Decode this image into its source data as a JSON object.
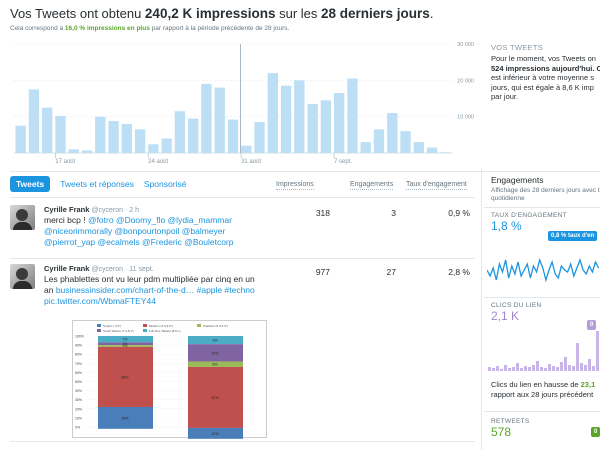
{
  "header": {
    "headline_pre": "Vos Tweets ont obtenu ",
    "headline_value": "240,2 K impressions",
    "headline_mid": " sur les ",
    "headline_period": "28 derniers jours",
    "headline_end": ".",
    "sub_pre": "Cela correspond à ",
    "sub_highlight": "16,0 % impressions en plus",
    "sub_post": " par rapport à la période précédente de 28 jours."
  },
  "chart_data": {
    "type": "bar",
    "categories": [
      "",
      "",
      "",
      "17 août",
      "",
      "",
      "",
      "",
      "",
      "",
      "24 août",
      "",
      "",
      "",
      "",
      "",
      "",
      "31 août",
      "",
      "",
      "",
      "",
      "",
      "",
      "7 sept.",
      "",
      "",
      "",
      "",
      "",
      "",
      "",
      ""
    ],
    "values": [
      7500,
      17500,
      12500,
      10200,
      1000,
      700,
      10000,
      8800,
      8000,
      6500,
      2400,
      4000,
      11500,
      9500,
      19000,
      18000,
      9200,
      2000,
      8500,
      22000,
      18500,
      20000,
      13500,
      14500,
      16500,
      20500,
      3000,
      6500,
      11000,
      6000,
      3000,
      1500,
      200
    ],
    "ylim": [
      0,
      30000
    ],
    "yticks": [
      10000,
      20000,
      30000
    ],
    "ytick_labels": [
      "10 000",
      "20 000",
      "30 000"
    ],
    "grid": true
  },
  "summary": {
    "title": "VOS TWEETS",
    "lines": [
      "Pour le moment, vos Tweets on",
      "524 impressions aujourd'hui. C",
      "est inférieur à votre moyenne s",
      "jours, qui est égale à 8,6 K imp",
      "par jour."
    ]
  },
  "tabs": [
    "Tweets",
    "Tweets et réponses",
    "Sponsorisé"
  ],
  "columns": [
    "Impressions",
    "Engagements",
    "Taux d'engagement"
  ],
  "tweets": [
    {
      "name": "Cyrille Frank",
      "handle": "@cyceron · 2 h",
      "line1_text": "merci bcp ! ",
      "line1_links": "@fotro @Doomy_flo @lydia_mammar",
      "line2": "@niceorimmorally @bonpourtonpoil @balmeyer",
      "line3": "@pierrot_yap @ecalmels @Frederic @Bouletcorp",
      "impressions": "318",
      "engagements": "3",
      "rate": "0,9 %"
    },
    {
      "name": "Cyrille Frank",
      "handle": "@cyceron · 11 sept.",
      "line1_text": "Les phablettes ont vu leur pdm multipliée par cinq en un",
      "line2_pre": "an ",
      "line2_link": "businessinsider.com/chart-of-the-d…",
      "line2_tags": " #apple #techno",
      "line3": "pic.twitter.com/WbmaFTEY44",
      "impressions": "977",
      "engagements": "27",
      "rate": "2,8 %"
    }
  ],
  "embed": {
    "legend": [
      "Small (< 3.5\")",
      "Medium (3.5-4.9\")",
      "Phablets (5.0-6.9\")",
      "Small Tablets (7.0-8.4\")",
      "Full Size Tablets (8.5\"+)"
    ],
    "yticks": [
      "100%",
      "90%",
      "80%",
      "70%",
      "60%",
      "50%",
      "40%",
      "30%",
      "20%",
      "10%",
      "0%"
    ],
    "bar1_labels": [
      "7%",
      "3%",
      "2%",
      "66%",
      "24%"
    ],
    "bar2_labels": [
      "9%",
      "19%",
      "6%",
      "67%",
      "12%"
    ]
  },
  "engagement": {
    "title": "Engagements",
    "subtitle_lines": [
      "Affichage des 28 derniers jours avec t",
      "quotidienne"
    ],
    "rate_label": "TAUX D'ENGAGEMENT",
    "rate_value": "1,8 %",
    "rate_pill": "0,8 % taux d'en",
    "clicks_label": "CLICS DU LIEN",
    "clicks_value": "2,1 K",
    "clicks_pill": "0",
    "clicks_note_pre": "Clics du lien en hausse de ",
    "clicks_note_val": "23,1",
    "clicks_note_line2": "rapport aux 28 jours précédent",
    "retweets_label": "RETWEETS",
    "retweets_value": "578",
    "retweets_pill": "0",
    "colors": {
      "accent": "#1b95e0",
      "bar": "#bcdff6",
      "purple": "#c8b6e8",
      "green": "#5aa52a"
    }
  }
}
